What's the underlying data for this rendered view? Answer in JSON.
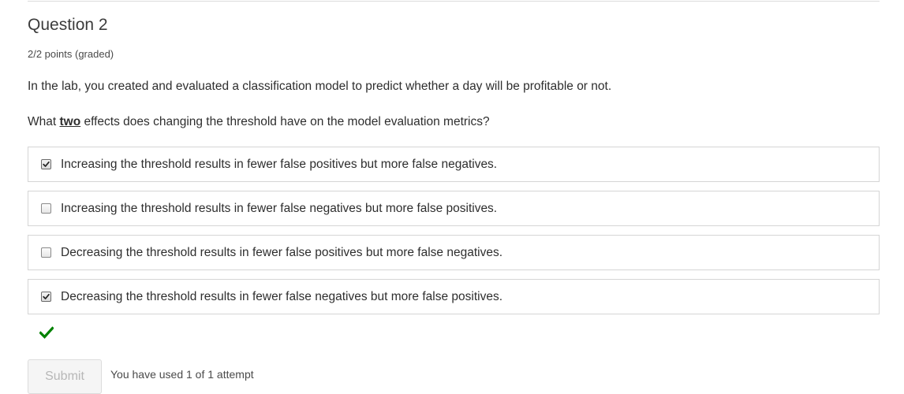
{
  "question": {
    "title": "Question 2",
    "points": "2/2 points (graded)",
    "text_1": "In the lab, you created and evaluated a classification model to predict whether a day will be profitable or not.",
    "text_2_before": "What ",
    "text_2_emphasis": "two",
    "text_2_after": " effects does changing the threshold have on the model evaluation metrics?"
  },
  "options": [
    {
      "label": "Increasing the threshold results in fewer false positives but more false negatives.",
      "checked": true
    },
    {
      "label": "Increasing the threshold results in fewer false negatives but more false positives.",
      "checked": false
    },
    {
      "label": "Decreasing the threshold results in fewer false positives but more false negatives.",
      "checked": false
    },
    {
      "label": "Decreasing the threshold results in fewer false negatives but more false positives.",
      "checked": true
    }
  ],
  "result": {
    "icon": "checkmark-icon",
    "color": "#008100"
  },
  "footer": {
    "submit_label": "Submit",
    "attempts_text": "You have used 1 of 1 attempt"
  }
}
